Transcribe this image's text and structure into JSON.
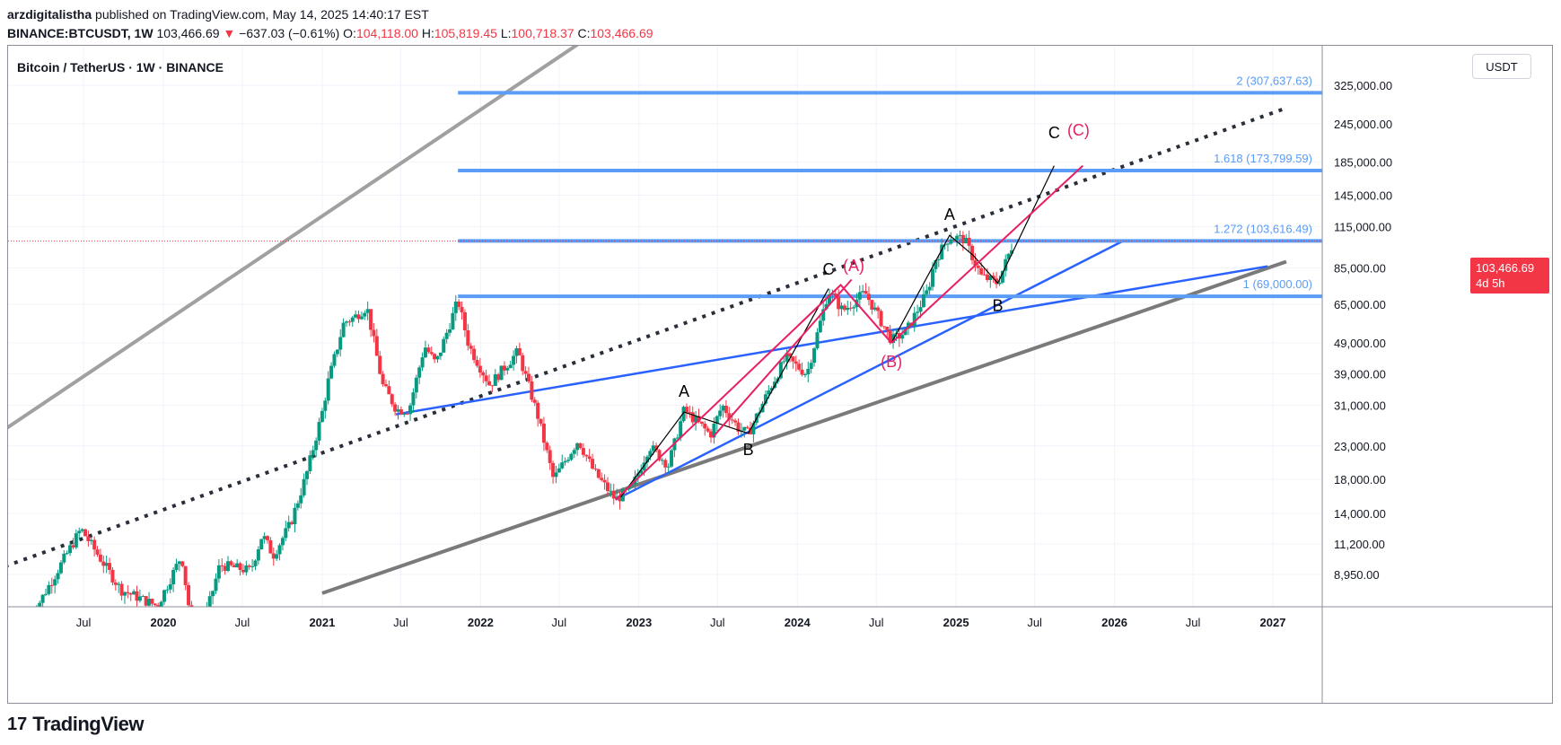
{
  "header": {
    "author": "arzdigitalistha",
    "published": "published on TradingView.com, May 14, 2025 14:40:17 EST",
    "symbol": "BINANCE:BTCUSDT, 1W",
    "last": "103,466.69",
    "change_arrow": "▼",
    "change": "−637.03 (−0.61%)",
    "open_label": "O:",
    "open": "104,118.00",
    "high_label": "H:",
    "high": "105,819.45",
    "low_label": "L:",
    "low": "100,718.37",
    "close_label": "C:",
    "close": "103,466.69"
  },
  "chart_title": "Bitcoin / TetherUS · 1W · BINANCE",
  "currency": "USDT",
  "price_tag": {
    "price": "103,466.69",
    "countdown": "4d 5h"
  },
  "footer": {
    "logo_mark": "17",
    "brand": "TradingView"
  },
  "colors": {
    "up": "#089981",
    "down": "#f23645",
    "fib": "#5b9cf6",
    "trend": "#2962ff",
    "channel": "#9e9e9e",
    "wave_red": "#e91e63",
    "wave_black": "#000000"
  },
  "chart_data": {
    "type": "candlestick",
    "scale": "log",
    "y_ticks": [
      325000,
      245000,
      185000,
      145000,
      115000,
      85000,
      65000,
      49000,
      39000,
      31000,
      23000,
      18000,
      14000,
      11200,
      8950
    ],
    "y_tick_labels": [
      "325,000.00",
      "245,000.00",
      "185,000.00",
      "145,000.00",
      "115,000.00",
      "85,000.00",
      "65,000.00",
      "49,000.00",
      "39,000.00",
      "31,000.00",
      "23,000.00",
      "18,000.00",
      "14,000.00",
      "11,200.00",
      "8,950.00"
    ],
    "x_ticks": [
      {
        "date": "2019-07-01",
        "label": "Jul"
      },
      {
        "date": "2020-01-01",
        "label": "2020"
      },
      {
        "date": "2020-07-01",
        "label": "Jul"
      },
      {
        "date": "2021-01-01",
        "label": "2021"
      },
      {
        "date": "2021-07-01",
        "label": "Jul"
      },
      {
        "date": "2022-01-01",
        "label": "2022"
      },
      {
        "date": "2022-07-01",
        "label": "Jul"
      },
      {
        "date": "2023-01-01",
        "label": "2023"
      },
      {
        "date": "2023-07-01",
        "label": "Jul"
      },
      {
        "date": "2024-01-01",
        "label": "2024"
      },
      {
        "date": "2024-07-01",
        "label": "Jul"
      },
      {
        "date": "2025-01-01",
        "label": "2025"
      },
      {
        "date": "2025-07-01",
        "label": "Jul"
      },
      {
        "date": "2026-01-01",
        "label": "2026"
      },
      {
        "date": "2026-07-01",
        "label": "Jul"
      },
      {
        "date": "2027-01-01",
        "label": "2027"
      }
    ],
    "price_path": [
      [
        "2019-03-01",
        6500
      ],
      [
        "2019-06-25",
        12500
      ],
      [
        "2019-09-25",
        8000
      ],
      [
        "2019-12-18",
        7100
      ],
      [
        "2020-02-12",
        10300
      ],
      [
        "2020-03-15",
        5000
      ],
      [
        "2020-05-10",
        9600
      ],
      [
        "2020-07-20",
        9200
      ],
      [
        "2020-08-16",
        12000
      ],
      [
        "2020-09-10",
        10300
      ],
      [
        "2020-10-20",
        13000
      ],
      [
        "2020-11-25",
        18500
      ],
      [
        "2020-12-31",
        29000
      ],
      [
        "2021-01-15",
        37000
      ],
      [
        "2021-02-20",
        57000
      ],
      [
        "2021-03-15",
        59000
      ],
      [
        "2021-04-14",
        64000
      ],
      [
        "2021-05-20",
        36000
      ],
      [
        "2021-06-22",
        30000
      ],
      [
        "2021-07-20",
        30000
      ],
      [
        "2021-08-25",
        48000
      ],
      [
        "2021-09-20",
        42000
      ],
      [
        "2021-11-10",
        67000
      ],
      [
        "2021-12-05",
        48000
      ],
      [
        "2022-01-22",
        36000
      ],
      [
        "2022-03-28",
        46000
      ],
      [
        "2022-05-12",
        29000
      ],
      [
        "2022-06-18",
        18000
      ],
      [
        "2022-08-14",
        24000
      ],
      [
        "2022-09-20",
        19000
      ],
      [
        "2022-11-08",
        15500
      ],
      [
        "2022-12-15",
        16800
      ],
      [
        "2023-01-25",
        23000
      ],
      [
        "2023-03-10",
        20000
      ],
      [
        "2023-04-15",
        30000
      ],
      [
        "2023-06-15",
        25000
      ],
      [
        "2023-07-12",
        31000
      ],
      [
        "2023-08-20",
        26000
      ],
      [
        "2023-09-10",
        25200
      ],
      [
        "2023-10-25",
        34000
      ],
      [
        "2023-12-05",
        44000
      ],
      [
        "2024-01-23",
        39000
      ],
      [
        "2024-03-13",
        72000
      ],
      [
        "2024-04-15",
        62000
      ],
      [
        "2024-06-05",
        71000
      ],
      [
        "2024-08-05",
        50000
      ],
      [
        "2024-09-07",
        53000
      ],
      [
        "2024-10-28",
        72000
      ],
      [
        "2024-11-13",
        90000
      ],
      [
        "2024-12-17",
        107000
      ],
      [
        "2025-01-20",
        105000
      ],
      [
        "2025-02-28",
        80000
      ],
      [
        "2025-04-07",
        76000
      ],
      [
        "2025-05-14",
        103466.69
      ]
    ],
    "fib_levels": [
      {
        "ratio": "2",
        "price": 307637.63,
        "label": "2 (307,637.63)"
      },
      {
        "ratio": "1.618",
        "price": 173799.59,
        "label": "1.618 (173,799.59)"
      },
      {
        "ratio": "1.272",
        "price": 103616.49,
        "label": "1.272 (103,616.49)"
      },
      {
        "ratio": "1",
        "price": 69000.0,
        "label": "1 (69,000.00)"
      }
    ],
    "wave_labels": [
      {
        "text": "A",
        "date": "2023-04-15",
        "price": 33000,
        "color": "black"
      },
      {
        "text": "B",
        "date": "2023-09-10",
        "price": 21500,
        "color": "black"
      },
      {
        "text": "C",
        "date": "2024-03-13",
        "price": 81000,
        "color": "black"
      },
      {
        "text": "(A)",
        "date": "2024-05-10",
        "price": 83000,
        "color": "red"
      },
      {
        "text": "(B)",
        "date": "2024-08-05",
        "price": 41000,
        "color": "red"
      },
      {
        "text": "A",
        "date": "2024-12-17",
        "price": 121000,
        "color": "black"
      },
      {
        "text": "B",
        "date": "2025-04-07",
        "price": 62000,
        "color": "black"
      },
      {
        "text": "C",
        "date": "2025-08-15",
        "price": 220000,
        "color": "black"
      },
      {
        "text": "(C)",
        "date": "2025-10-10",
        "price": 225000,
        "color": "red"
      }
    ]
  }
}
